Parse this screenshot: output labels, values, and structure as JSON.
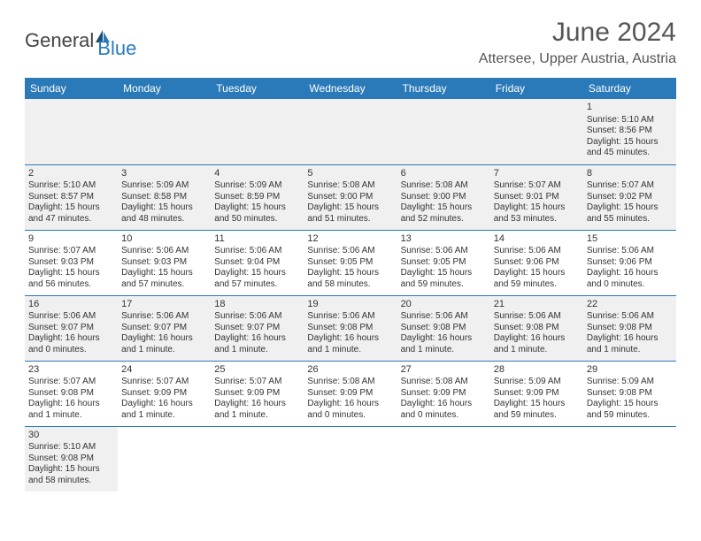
{
  "logo": {
    "part1": "General",
    "part2": "Blue"
  },
  "title": "June 2024",
  "location": "Attersee, Upper Austria, Austria",
  "colors": {
    "header_bg": "#2a7ab9",
    "header_text": "#ffffff",
    "alt_row_bg": "#f0f0f0",
    "text": "#333333",
    "row_border": "#2a7ab9"
  },
  "dayNames": [
    "Sunday",
    "Monday",
    "Tuesday",
    "Wednesday",
    "Thursday",
    "Friday",
    "Saturday"
  ],
  "weeks": [
    [
      null,
      null,
      null,
      null,
      null,
      null,
      {
        "n": "1",
        "sr": "Sunrise: 5:10 AM",
        "ss": "Sunset: 8:56 PM",
        "dl": "Daylight: 15 hours and 45 minutes."
      }
    ],
    [
      {
        "n": "2",
        "sr": "Sunrise: 5:10 AM",
        "ss": "Sunset: 8:57 PM",
        "dl": "Daylight: 15 hours and 47 minutes."
      },
      {
        "n": "3",
        "sr": "Sunrise: 5:09 AM",
        "ss": "Sunset: 8:58 PM",
        "dl": "Daylight: 15 hours and 48 minutes."
      },
      {
        "n": "4",
        "sr": "Sunrise: 5:09 AM",
        "ss": "Sunset: 8:59 PM",
        "dl": "Daylight: 15 hours and 50 minutes."
      },
      {
        "n": "5",
        "sr": "Sunrise: 5:08 AM",
        "ss": "Sunset: 9:00 PM",
        "dl": "Daylight: 15 hours and 51 minutes."
      },
      {
        "n": "6",
        "sr": "Sunrise: 5:08 AM",
        "ss": "Sunset: 9:00 PM",
        "dl": "Daylight: 15 hours and 52 minutes."
      },
      {
        "n": "7",
        "sr": "Sunrise: 5:07 AM",
        "ss": "Sunset: 9:01 PM",
        "dl": "Daylight: 15 hours and 53 minutes."
      },
      {
        "n": "8",
        "sr": "Sunrise: 5:07 AM",
        "ss": "Sunset: 9:02 PM",
        "dl": "Daylight: 15 hours and 55 minutes."
      }
    ],
    [
      {
        "n": "9",
        "sr": "Sunrise: 5:07 AM",
        "ss": "Sunset: 9:03 PM",
        "dl": "Daylight: 15 hours and 56 minutes."
      },
      {
        "n": "10",
        "sr": "Sunrise: 5:06 AM",
        "ss": "Sunset: 9:03 PM",
        "dl": "Daylight: 15 hours and 57 minutes."
      },
      {
        "n": "11",
        "sr": "Sunrise: 5:06 AM",
        "ss": "Sunset: 9:04 PM",
        "dl": "Daylight: 15 hours and 57 minutes."
      },
      {
        "n": "12",
        "sr": "Sunrise: 5:06 AM",
        "ss": "Sunset: 9:05 PM",
        "dl": "Daylight: 15 hours and 58 minutes."
      },
      {
        "n": "13",
        "sr": "Sunrise: 5:06 AM",
        "ss": "Sunset: 9:05 PM",
        "dl": "Daylight: 15 hours and 59 minutes."
      },
      {
        "n": "14",
        "sr": "Sunrise: 5:06 AM",
        "ss": "Sunset: 9:06 PM",
        "dl": "Daylight: 15 hours and 59 minutes."
      },
      {
        "n": "15",
        "sr": "Sunrise: 5:06 AM",
        "ss": "Sunset: 9:06 PM",
        "dl": "Daylight: 16 hours and 0 minutes."
      }
    ],
    [
      {
        "n": "16",
        "sr": "Sunrise: 5:06 AM",
        "ss": "Sunset: 9:07 PM",
        "dl": "Daylight: 16 hours and 0 minutes."
      },
      {
        "n": "17",
        "sr": "Sunrise: 5:06 AM",
        "ss": "Sunset: 9:07 PM",
        "dl": "Daylight: 16 hours and 1 minute."
      },
      {
        "n": "18",
        "sr": "Sunrise: 5:06 AM",
        "ss": "Sunset: 9:07 PM",
        "dl": "Daylight: 16 hours and 1 minute."
      },
      {
        "n": "19",
        "sr": "Sunrise: 5:06 AM",
        "ss": "Sunset: 9:08 PM",
        "dl": "Daylight: 16 hours and 1 minute."
      },
      {
        "n": "20",
        "sr": "Sunrise: 5:06 AM",
        "ss": "Sunset: 9:08 PM",
        "dl": "Daylight: 16 hours and 1 minute."
      },
      {
        "n": "21",
        "sr": "Sunrise: 5:06 AM",
        "ss": "Sunset: 9:08 PM",
        "dl": "Daylight: 16 hours and 1 minute."
      },
      {
        "n": "22",
        "sr": "Sunrise: 5:06 AM",
        "ss": "Sunset: 9:08 PM",
        "dl": "Daylight: 16 hours and 1 minute."
      }
    ],
    [
      {
        "n": "23",
        "sr": "Sunrise: 5:07 AM",
        "ss": "Sunset: 9:08 PM",
        "dl": "Daylight: 16 hours and 1 minute."
      },
      {
        "n": "24",
        "sr": "Sunrise: 5:07 AM",
        "ss": "Sunset: 9:09 PM",
        "dl": "Daylight: 16 hours and 1 minute."
      },
      {
        "n": "25",
        "sr": "Sunrise: 5:07 AM",
        "ss": "Sunset: 9:09 PM",
        "dl": "Daylight: 16 hours and 1 minute."
      },
      {
        "n": "26",
        "sr": "Sunrise: 5:08 AM",
        "ss": "Sunset: 9:09 PM",
        "dl": "Daylight: 16 hours and 0 minutes."
      },
      {
        "n": "27",
        "sr": "Sunrise: 5:08 AM",
        "ss": "Sunset: 9:09 PM",
        "dl": "Daylight: 16 hours and 0 minutes."
      },
      {
        "n": "28",
        "sr": "Sunrise: 5:09 AM",
        "ss": "Sunset: 9:09 PM",
        "dl": "Daylight: 15 hours and 59 minutes."
      },
      {
        "n": "29",
        "sr": "Sunrise: 5:09 AM",
        "ss": "Sunset: 9:08 PM",
        "dl": "Daylight: 15 hours and 59 minutes."
      }
    ],
    [
      {
        "n": "30",
        "sr": "Sunrise: 5:10 AM",
        "ss": "Sunset: 9:08 PM",
        "dl": "Daylight: 15 hours and 58 minutes."
      },
      null,
      null,
      null,
      null,
      null,
      null
    ]
  ]
}
